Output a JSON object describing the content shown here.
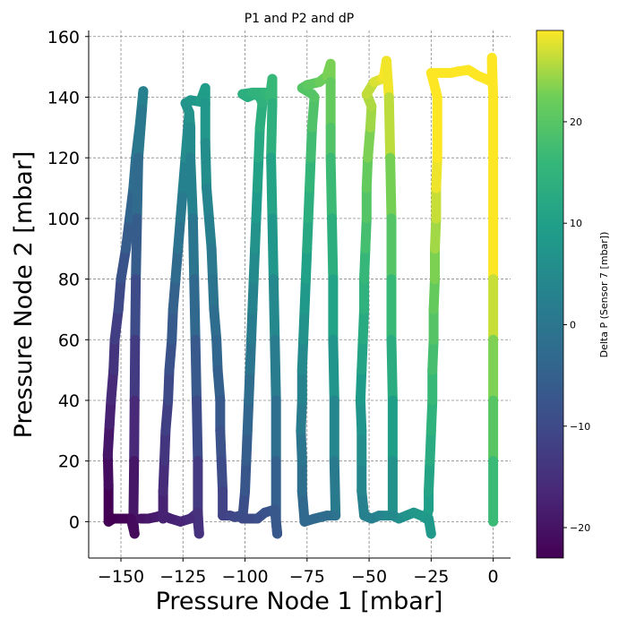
{
  "chart_data": {
    "type": "scatter",
    "title": "P1 and P2 and dP",
    "xlabel": "Pressure Node 1 [mbar]",
    "ylabel": "Pressure Node 2 [mbar]",
    "xlim": [
      -163,
      7
    ],
    "ylim": [
      -12,
      162
    ],
    "xticks": [
      -150,
      -125,
      -100,
      -75,
      -50,
      -25,
      0
    ],
    "xtick_labels": [
      "−150",
      "−125",
      "−100",
      "−75",
      "−50",
      "−25",
      "0"
    ],
    "yticks": [
      0,
      20,
      40,
      60,
      80,
      100,
      120,
      140,
      160
    ],
    "ytick_labels": [
      "0",
      "20",
      "40",
      "60",
      "80",
      "100",
      "120",
      "140",
      "160"
    ],
    "grid": true,
    "grid_style": "dashed",
    "colormap": "viridis",
    "colorbar": {
      "label": "Delta P (Sensor 7 [mbar])",
      "range": [
        -23,
        29
      ],
      "ticks": [
        -20,
        -10,
        0,
        10,
        20
      ],
      "tick_labels": [
        "−20",
        "−10",
        "0",
        "10",
        "20"
      ]
    },
    "paths": [
      [
        [
          -155,
          0
        ],
        [
          -155,
          12
        ],
        [
          -155.3,
          22
        ],
        [
          -154.6,
          32
        ],
        [
          -154,
          40
        ],
        [
          -153,
          50
        ],
        [
          -152.5,
          60
        ],
        [
          -151,
          70
        ],
        [
          -150,
          80
        ],
        [
          -148,
          90
        ],
        [
          -146.5,
          100
        ],
        [
          -145,
          110
        ],
        [
          -144,
          120
        ],
        [
          -142.5,
          130
        ],
        [
          -141,
          142
        ],
        [
          -141.5,
          136
        ],
        [
          -143,
          120
        ],
        [
          -143.5,
          100
        ],
        [
          -144,
          80
        ],
        [
          -144.3,
          60
        ],
        [
          -144.5,
          40
        ],
        [
          -144.7,
          20
        ],
        [
          -145,
          0
        ],
        [
          -144.5,
          -4
        ],
        [
          -146,
          1
        ],
        [
          -149,
          1
        ],
        [
          -153,
          1
        ],
        [
          -155,
          0
        ]
      ],
      [
        [
          -142,
          1
        ],
        [
          -139,
          1
        ],
        [
          -136,
          1.5
        ],
        [
          -134,
          2
        ],
        [
          -133,
          1
        ],
        [
          -133,
          10
        ],
        [
          -132.5,
          20
        ],
        [
          -132,
          30
        ],
        [
          -131,
          40
        ],
        [
          -130.5,
          50
        ],
        [
          -129.5,
          60
        ],
        [
          -129,
          70
        ],
        [
          -128,
          80
        ],
        [
          -127,
          90
        ],
        [
          -126,
          100
        ],
        [
          -125,
          110
        ],
        [
          -124,
          120
        ],
        [
          -122.5,
          135
        ],
        [
          -122,
          130
        ],
        [
          -122,
          120
        ],
        [
          -121,
          100
        ],
        [
          -120.5,
          80
        ],
        [
          -120,
          60
        ],
        [
          -119.5,
          40
        ],
        [
          -119,
          20
        ],
        [
          -119,
          0
        ],
        [
          -118.5,
          -4
        ],
        [
          -119,
          3
        ]
      ],
      [
        [
          -119,
          3
        ],
        [
          -122,
          1
        ],
        [
          -126,
          0
        ],
        [
          -130,
          1
        ],
        [
          -133,
          2
        ]
      ],
      [
        [
          -122.5,
          135
        ],
        [
          -124,
          138
        ],
        [
          -122,
          139
        ],
        [
          -118,
          138.5
        ],
        [
          -116,
          143
        ],
        [
          -116,
          138
        ],
        [
          -116,
          125
        ],
        [
          -115.5,
          110
        ],
        [
          -114.5,
          100
        ],
        [
          -113.5,
          90
        ],
        [
          -113,
          80
        ],
        [
          -112.5,
          70
        ],
        [
          -111.5,
          60
        ],
        [
          -111,
          50
        ],
        [
          -110,
          40
        ],
        [
          -110,
          30
        ],
        [
          -109.5,
          20
        ],
        [
          -109,
          10
        ],
        [
          -109,
          2
        ],
        [
          -106,
          2
        ],
        [
          -104,
          1.5
        ],
        [
          -102,
          2
        ],
        [
          -101,
          1
        ],
        [
          -100,
          10
        ],
        [
          -99.5,
          20
        ],
        [
          -99,
          30
        ],
        [
          -98.5,
          40
        ],
        [
          -98,
          50
        ],
        [
          -97.5,
          60
        ],
        [
          -97,
          70
        ],
        [
          -96.5,
          80
        ],
        [
          -96,
          90
        ],
        [
          -95.5,
          100
        ],
        [
          -95,
          110
        ],
        [
          -94.5,
          120
        ],
        [
          -94,
          130
        ],
        [
          -93,
          138
        ],
        [
          -94,
          140
        ],
        [
          -96,
          141
        ],
        [
          -99,
          140
        ],
        [
          -101,
          141
        ],
        [
          -97,
          141.5
        ],
        [
          -92,
          141.5
        ],
        [
          -90,
          140
        ],
        [
          -89,
          146
        ],
        [
          -89,
          138
        ],
        [
          -89.5,
          120
        ],
        [
          -89,
          100
        ],
        [
          -88.5,
          80
        ],
        [
          -88,
          60
        ],
        [
          -87.5,
          40
        ],
        [
          -87.5,
          20
        ],
        [
          -87.5,
          0
        ],
        [
          -87,
          -4
        ],
        [
          -88,
          4
        ],
        [
          -92,
          3
        ],
        [
          -95,
          1
        ],
        [
          -98,
          1
        ],
        [
          -101,
          1
        ]
      ],
      [
        [
          -76,
          0
        ],
        [
          -77,
          10
        ],
        [
          -77,
          20
        ],
        [
          -77.5,
          30
        ],
        [
          -77,
          40
        ],
        [
          -77,
          50
        ],
        [
          -76.5,
          60
        ],
        [
          -76,
          70
        ],
        [
          -75.5,
          80
        ],
        [
          -75,
          90
        ],
        [
          -74.5,
          100
        ],
        [
          -74,
          110
        ],
        [
          -73.5,
          120
        ],
        [
          -73,
          130
        ],
        [
          -72,
          140
        ],
        [
          -73,
          141
        ],
        [
          -77,
          143
        ],
        [
          -75,
          144
        ],
        [
          -70,
          145
        ],
        [
          -67,
          147
        ],
        [
          -65.5,
          151
        ],
        [
          -65.5,
          145
        ],
        [
          -65.5,
          130
        ],
        [
          -65.5,
          120
        ],
        [
          -65,
          100
        ],
        [
          -64.5,
          80
        ],
        [
          -64.5,
          60
        ],
        [
          -64,
          40
        ],
        [
          -64,
          20
        ],
        [
          -63.5,
          2
        ],
        [
          -67,
          2
        ],
        [
          -72,
          1
        ],
        [
          -76,
          0
        ]
      ],
      [
        [
          -52,
          2
        ],
        [
          -53,
          10
        ],
        [
          -53,
          20
        ],
        [
          -53,
          30
        ],
        [
          -53.5,
          40
        ],
        [
          -53,
          50
        ],
        [
          -52.5,
          60
        ],
        [
          -52,
          70
        ],
        [
          -52,
          80
        ],
        [
          -51.5,
          90
        ],
        [
          -51,
          100
        ],
        [
          -51,
          110
        ],
        [
          -50.5,
          120
        ],
        [
          -49.5,
          130
        ],
        [
          -49,
          137
        ],
        [
          -51,
          141
        ],
        [
          -48,
          145
        ],
        [
          -45,
          146
        ],
        [
          -44,
          147
        ],
        [
          -43,
          152
        ],
        [
          -42,
          140
        ],
        [
          -41.5,
          120
        ],
        [
          -41,
          100
        ],
        [
          -41,
          80
        ],
        [
          -41,
          60
        ],
        [
          -40.5,
          40
        ],
        [
          -40.5,
          20
        ],
        [
          -40.5,
          2
        ],
        [
          -38,
          1
        ],
        [
          -35,
          2
        ],
        [
          -32,
          3
        ],
        [
          -29,
          2
        ],
        [
          -27,
          1
        ],
        [
          -26,
          4
        ],
        [
          -26,
          10
        ],
        [
          -25.5,
          20
        ],
        [
          -25,
          30
        ],
        [
          -24.5,
          40
        ],
        [
          -24.5,
          50
        ],
        [
          -24,
          60
        ],
        [
          -24,
          70
        ],
        [
          -23.5,
          80
        ],
        [
          -23.5,
          90
        ],
        [
          -23,
          100
        ],
        [
          -23,
          110
        ],
        [
          -22.5,
          120
        ],
        [
          -22.5,
          130
        ],
        [
          -22.5,
          140
        ],
        [
          -24,
          145
        ],
        [
          -25,
          148
        ],
        [
          -21,
          148
        ],
        [
          -17,
          148
        ],
        [
          -14,
          148.5
        ],
        [
          -10,
          149
        ],
        [
          -6,
          147
        ],
        [
          -3,
          146
        ],
        [
          -0.5,
          145
        ],
        [
          -0.5,
          153
        ],
        [
          0,
          140
        ],
        [
          0,
          120
        ],
        [
          0,
          100
        ],
        [
          0,
          80
        ],
        [
          0,
          60
        ],
        [
          0,
          40
        ],
        [
          0,
          20
        ],
        [
          0,
          0
        ]
      ],
      [
        [
          -40.5,
          2
        ],
        [
          -46,
          2
        ],
        [
          -49,
          1
        ],
        [
          -52,
          2
        ]
      ],
      [
        [
          -26,
          1
        ],
        [
          -25,
          -4
        ]
      ]
    ]
  }
}
